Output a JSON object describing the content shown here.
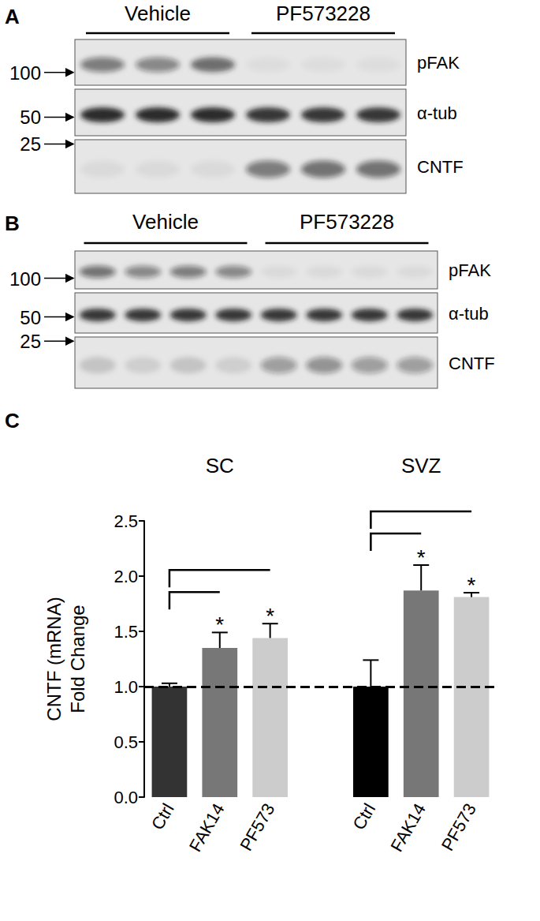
{
  "panels": [
    {
      "label": "A",
      "blot": {
        "groups": [
          "Vehicle",
          "PF573228"
        ],
        "rows": [
          {
            "label": "pFAK",
            "marker": 100,
            "signal": [
              [
                0.5,
                0.45,
                0.6
              ],
              [
                0.04,
                0.04,
                0.04
              ]
            ]
          },
          {
            "label": "α-tub",
            "marker": 50,
            "signal": [
              [
                0.9,
                0.9,
                0.9
              ],
              [
                0.85,
                0.85,
                0.85
              ]
            ]
          },
          {
            "label": "CNTF",
            "marker": 25,
            "signal": [
              [
                0.05,
                0.05,
                0.05
              ],
              [
                0.5,
                0.55,
                0.55
              ]
            ]
          }
        ]
      }
    },
    {
      "label": "B",
      "blot": {
        "groups": [
          "Vehicle",
          "PF573228"
        ],
        "rows": [
          {
            "label": "pFAK",
            "marker": 100,
            "signal": [
              [
                0.55,
                0.45,
                0.5,
                0.45
              ],
              [
                0.05,
                0.05,
                0.05,
                0.05
              ]
            ]
          },
          {
            "label": "α-tub",
            "marker": 50,
            "signal": [
              [
                0.85,
                0.85,
                0.85,
                0.85
              ],
              [
                0.85,
                0.85,
                0.85,
                0.85
              ]
            ]
          },
          {
            "label": "CNTF",
            "marker": 25,
            "signal": [
              [
                0.15,
                0.1,
                0.15,
                0.1
              ],
              [
                0.35,
                0.4,
                0.35,
                0.35
              ]
            ]
          }
        ]
      }
    }
  ],
  "chart_data": {
    "label": "C",
    "type": "bar",
    "ylabel": [
      "CNTF (mRNA)",
      "Fold Change"
    ],
    "categories": [
      "Ctrl",
      "FAK14",
      "PF573",
      null,
      "Ctrl",
      "FAK14",
      "PF573"
    ],
    "values": [
      1.0,
      1.35,
      1.44,
      null,
      1.0,
      1.87,
      1.81
    ],
    "errors": [
      0.03,
      0.14,
      0.13,
      null,
      0.24,
      0.23,
      0.04
    ],
    "colors": [
      "#333333",
      "#777777",
      "#cccccc",
      null,
      "#000000",
      "#777777",
      "#cccccc"
    ],
    "ylim": [
      0,
      2.5
    ],
    "yticks": [
      {
        "value": 0,
        "label": "0.0"
      },
      0.5,
      {
        "value": 1,
        "label": "1.0"
      },
      1.5,
      {
        "value": 2,
        "label": "2.0"
      },
      2.5
    ],
    "reference_line": 1,
    "groups": [
      {
        "label": "SC",
        "from": 0,
        "to": 2
      },
      {
        "label": "SVZ",
        "from": 4,
        "to": 6
      }
    ],
    "comparisons": [
      {
        "from": 0,
        "to": 1,
        "label": "*"
      },
      {
        "from": 0,
        "to": 2,
        "label": "*"
      },
      {
        "from": 4,
        "to": 5,
        "label": "*"
      },
      {
        "from": 4,
        "to": 6,
        "label": "*"
      }
    ]
  }
}
